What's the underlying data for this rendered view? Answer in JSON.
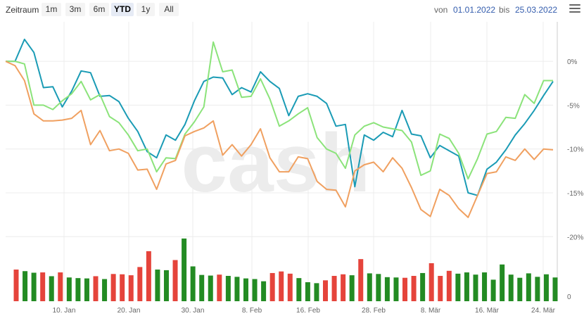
{
  "toolbar": {
    "zoom_label": "Zeitraum",
    "buttons": [
      "1m",
      "3m",
      "6m",
      "YTD",
      "1y",
      "All"
    ],
    "active": "YTD",
    "from_label": "von",
    "from_value": "01.01.2022",
    "to_label": "bis",
    "to_value": "25.03.2022"
  },
  "watermark": "cash",
  "chart_data": {
    "type": "line",
    "title": "",
    "y_ticks": [
      "0%",
      "-5%",
      "-10%",
      "-15%",
      "-20%"
    ],
    "y_tick_values": [
      0,
      -5,
      -10,
      -15,
      -20
    ],
    "volume_tick": "0",
    "x_ticks": [
      "10. Jan",
      "20. Jan",
      "30. Jan",
      "8. Feb",
      "16. Feb",
      "28. Feb",
      "8. Mär",
      "16. Mär",
      "24. Mär"
    ],
    "ylim": [
      -21.5,
      4.5
    ],
    "colors": {
      "teal": "#1a9bb5",
      "lightgreen": "#8be37a",
      "orange": "#f0a060",
      "up": "#238b23",
      "down": "#e5443b"
    },
    "series": [
      {
        "values": [
          0.0,
          0.0,
          2.5,
          1.0,
          -3.0,
          -2.9,
          -5.2,
          -3.4,
          -1.1,
          -1.3,
          -4.0,
          -3.9,
          -4.6,
          -6.5,
          -8.0,
          -10.3,
          -11.0,
          -8.4,
          -9.0,
          -7.2,
          -4.5,
          -2.3,
          -1.8,
          -1.9,
          -3.8,
          -3.0,
          -3.5,
          -1.2,
          -2.3,
          -3.1,
          -6.2,
          -4.0,
          -3.7,
          -4.0,
          -4.8,
          -7.4,
          -7.2,
          -14.3,
          -8.4,
          -9.0,
          -8.1,
          -8.6,
          -5.6,
          -8.3,
          -8.5,
          -11.0,
          -9.6,
          -10.2,
          -10.8,
          -15.0,
          -15.3,
          -12.3,
          -11.5,
          -10.1,
          -8.4,
          -7.1,
          -5.6,
          -3.9,
          -2.3
        ]
      },
      {
        "values": [
          0.0,
          0.0,
          -0.3,
          -5.0,
          -5.0,
          -5.5,
          -4.5,
          -3.7,
          -2.3,
          -4.4,
          -3.8,
          -6.3,
          -7.0,
          -8.4,
          -10.2,
          -10.0,
          -12.6,
          -11.0,
          -11.1,
          -8.3,
          -6.9,
          -5.2,
          2.2,
          -1.2,
          -1.0,
          -4.1,
          -4.0,
          -2.0,
          -4.3,
          -7.4,
          -6.8,
          -6.0,
          -5.3,
          -8.7,
          -10.0,
          -10.5,
          -12.2,
          -8.4,
          -7.4,
          -7.0,
          -7.5,
          -7.7,
          -7.9,
          -9.2,
          -13.0,
          -12.5,
          -8.3,
          -8.8,
          -10.5,
          -13.4,
          -11.1,
          -8.3,
          -8.0,
          -6.4,
          -6.5,
          -3.8,
          -4.8,
          -2.2,
          -2.2
        ]
      },
      {
        "values": [
          0.0,
          -0.5,
          -2.2,
          -6.0,
          -6.8,
          -6.8,
          -6.7,
          -6.5,
          -5.6,
          -9.5,
          -7.9,
          -10.2,
          -10.0,
          -10.5,
          -12.4,
          -12.3,
          -14.6,
          -11.7,
          -11.3,
          -8.5,
          -8.0,
          -7.6,
          -6.8,
          -10.7,
          -9.5,
          -10.8,
          -9.5,
          -7.7,
          -11.0,
          -12.6,
          -12.6,
          -10.9,
          -11.1,
          -13.7,
          -14.6,
          -14.7,
          -16.6,
          -12.5,
          -11.8,
          -11.5,
          -12.6,
          -11.0,
          -12.2,
          -14.4,
          -16.9,
          -17.7,
          -14.6,
          -15.3,
          -16.8,
          -17.8,
          -15.3,
          -12.8,
          -12.6,
          -10.9,
          -11.3,
          -10.0,
          -11.2,
          -10.0,
          -10.1
        ]
      },
      {
        "values": [
          1.0,
          0.95,
          0.9,
          0.91,
          0.79,
          0.91,
          0.75,
          0.73,
          0.72,
          0.79,
          0.7,
          0.86,
          0.85,
          0.82,
          1.08,
          1.58,
          1.0,
          0.98,
          1.3,
          1.98,
          1.1,
          0.83,
          0.81,
          0.84,
          0.8,
          0.77,
          0.72,
          0.7,
          0.63,
          0.89,
          0.94,
          0.87,
          0.73,
          0.6,
          0.57,
          0.66,
          0.8,
          0.85,
          0.82,
          1.33,
          0.88,
          0.86,
          0.76,
          0.75,
          0.74,
          0.8,
          0.89,
          1.2,
          0.8,
          0.96,
          0.87,
          0.91,
          0.84,
          0.91,
          0.68,
          1.16,
          0.84,
          0.74,
          0.88,
          0.77,
          0.85,
          0.75
        ]
      },
      {
        "values": [
          1,
          0,
          0,
          1,
          0,
          1,
          0,
          0,
          0,
          1,
          0,
          1,
          1,
          1,
          1,
          1,
          0,
          0,
          1,
          0,
          0,
          0,
          0,
          1,
          0,
          0,
          0,
          0,
          0,
          1,
          1,
          1,
          0,
          0,
          0,
          1,
          1,
          1,
          0,
          1,
          0,
          0,
          0,
          0,
          1,
          1,
          0,
          1,
          1,
          1,
          0,
          0,
          0,
          0,
          0,
          0,
          0,
          0,
          0,
          0,
          0,
          0
        ]
      }
    ]
  }
}
